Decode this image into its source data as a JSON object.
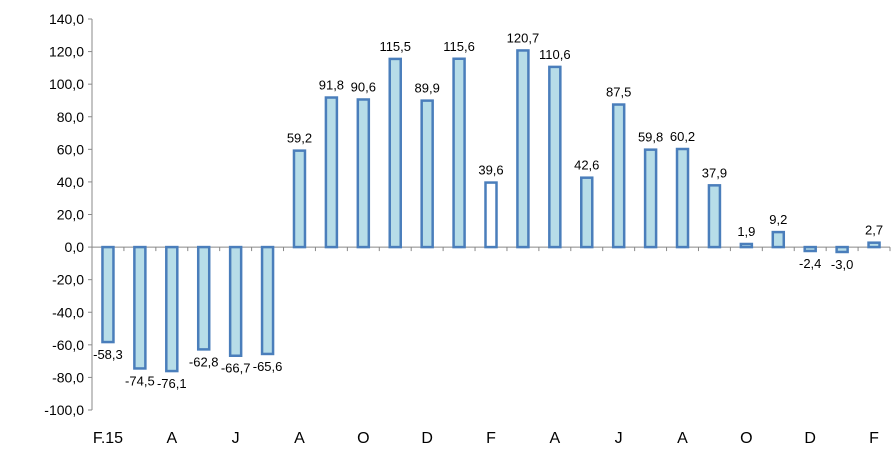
{
  "chart_data": {
    "type": "bar",
    "categories": [
      "F.15",
      null,
      "A",
      null,
      "J",
      null,
      "A",
      null,
      "O",
      null,
      "D",
      null,
      "F",
      null,
      "A",
      null,
      "J",
      null,
      "A",
      null,
      "O",
      null,
      "D",
      null,
      "F"
    ],
    "values": [
      -58.3,
      -74.5,
      -76.1,
      -62.8,
      -66.7,
      -65.6,
      59.2,
      91.8,
      90.6,
      115.5,
      89.9,
      115.6,
      39.6,
      120.7,
      110.6,
      42.6,
      87.5,
      59.8,
      60.2,
      37.9,
      1.9,
      9.2,
      -2.4,
      -3.0,
      2.7
    ],
    "value_labels": [
      "-58,3",
      "-74,5",
      "-76,1",
      "-62,8",
      "-66,7",
      "-65,6",
      "59,2",
      "91,8",
      "90,6",
      "115,5",
      "89,9",
      "115,6",
      "39,6",
      "120,7",
      "110,6",
      "42,6",
      "87,5",
      "59,8",
      "60,2",
      "37,9",
      "1,9",
      "9,2",
      "-2,4",
      "-3,0",
      "2,7"
    ],
    "colors": [
      "#b7dde8",
      "#b7dde8",
      "#b7dde8",
      "#b7dde8",
      "#b7dde8",
      "#b7dde8",
      "#b7dde8",
      "#b7dde8",
      "#b7dde8",
      "#b7dde8",
      "#b7dde8",
      "#b7dde8",
      "#ffffff",
      "#b7dde8",
      "#b7dde8",
      "#b7dde8",
      "#b7dde8",
      "#b7dde8",
      "#b7dde8",
      "#b7dde8",
      "#b7dde8",
      "#b7dde8",
      "#b7dde8",
      "#b7dde8",
      "#b7dde8"
    ],
    "edge_color": "#4a7ebb",
    "ylim": [
      -100,
      140
    ],
    "yticks": [
      {
        "value": -100,
        "label": "-100,0"
      },
      {
        "value": -80,
        "label": "-80,0"
      },
      {
        "value": -60,
        "label": "-60,0"
      },
      {
        "value": -40,
        "label": "-40,0"
      },
      {
        "value": -20,
        "label": "-20,0"
      },
      {
        "value": 0,
        "label": "0,0"
      },
      {
        "value": 20,
        "label": "20,0"
      },
      {
        "value": 40,
        "label": "40,0"
      },
      {
        "value": 60,
        "label": "60,0"
      },
      {
        "value": 80,
        "label": "80,0"
      },
      {
        "value": 100,
        "label": "100,0"
      },
      {
        "value": 120,
        "label": "120,0"
      },
      {
        "value": 140,
        "label": "140,0"
      }
    ],
    "grid": false
  }
}
